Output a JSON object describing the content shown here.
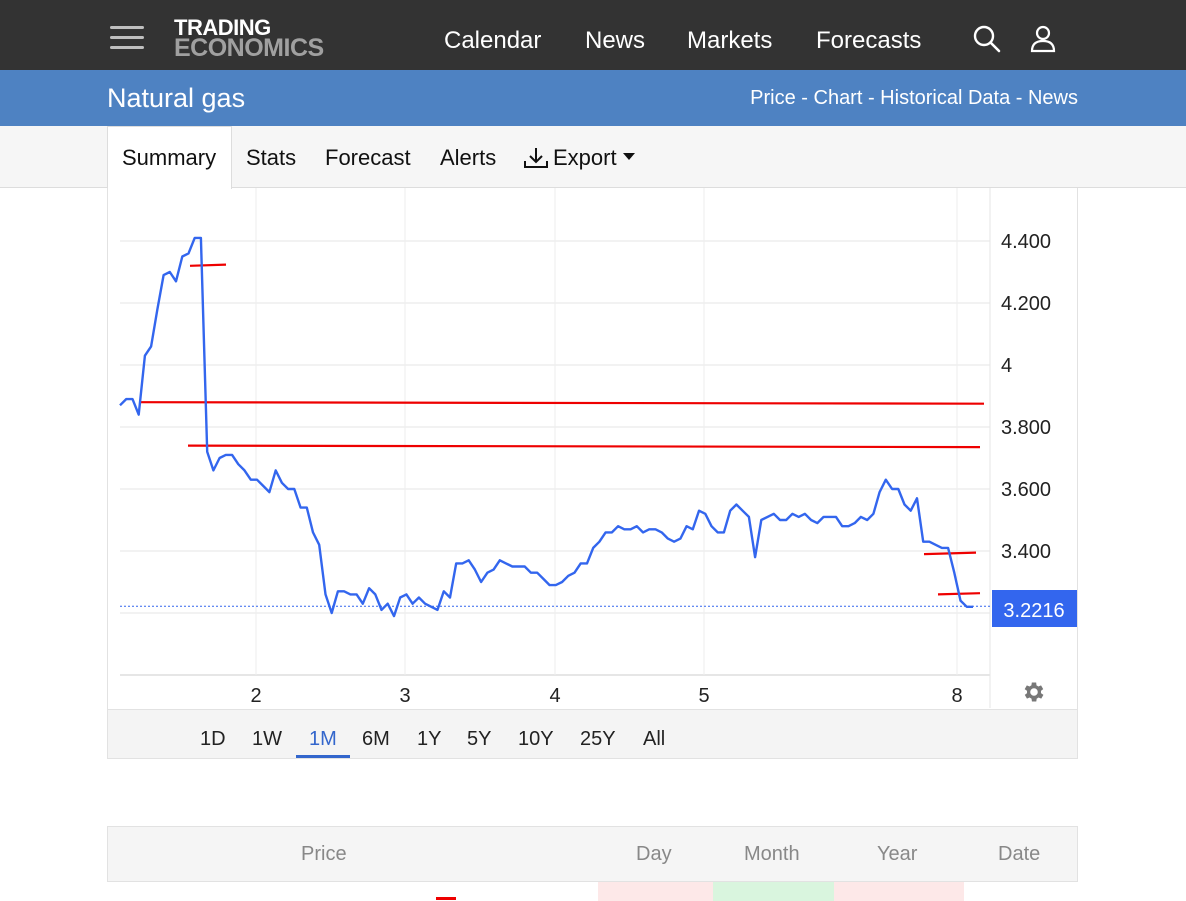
{
  "header": {
    "logo_line1": "TRADING",
    "logo_line2": "ECONOMICS",
    "nav": [
      "Calendar",
      "News",
      "Markets",
      "Forecasts"
    ],
    "search_icon": "search-icon",
    "user_icon": "user-icon",
    "menu_icon": "hamburger-menu-icon"
  },
  "subheader": {
    "title": "Natural gas",
    "links": "Price - Chart - Historical Data - News"
  },
  "tabs": {
    "summary": "Summary",
    "stats": "Stats",
    "forecast": "Forecast",
    "alerts": "Alerts",
    "export": "Export"
  },
  "chart_data": {
    "type": "line",
    "title": "",
    "xlabel": "",
    "ylabel": "",
    "x_ticks": [
      "2",
      "3",
      "4",
      "5",
      "8"
    ],
    "y_ticks": [
      "4.400",
      "4.200",
      "4",
      "3.800",
      "3.600",
      "3.400"
    ],
    "ylim": [
      3.0,
      4.55
    ],
    "current_value_label": "3.2216",
    "current_value": 3.2216,
    "series": [
      {
        "values": [
          3.87,
          3.89,
          3.89,
          3.84,
          4.03,
          4.06,
          4.18,
          4.29,
          4.3,
          4.27,
          4.35,
          4.36,
          4.41,
          4.41,
          3.72,
          3.66,
          3.7,
          3.71,
          3.71,
          3.68,
          3.66,
          3.63,
          3.63,
          3.61,
          3.59,
          3.66,
          3.62,
          3.6,
          3.6,
          3.54,
          3.54,
          3.46,
          3.42,
          3.26,
          3.2,
          3.27,
          3.27,
          3.26,
          3.26,
          3.23,
          3.28,
          3.26,
          3.21,
          3.23,
          3.19,
          3.25,
          3.26,
          3.23,
          3.25,
          3.23,
          3.22,
          3.21,
          3.27,
          3.25,
          3.36,
          3.36,
          3.37,
          3.34,
          3.3,
          3.33,
          3.34,
          3.37,
          3.36,
          3.35,
          3.35,
          3.35,
          3.33,
          3.33,
          3.31,
          3.29,
          3.29,
          3.3,
          3.32,
          3.33,
          3.36,
          3.36,
          3.41,
          3.43,
          3.46,
          3.46,
          3.48,
          3.47,
          3.47,
          3.48,
          3.46,
          3.47,
          3.47,
          3.46,
          3.44,
          3.43,
          3.44,
          3.48,
          3.47,
          3.53,
          3.52,
          3.48,
          3.46,
          3.46,
          3.53,
          3.55,
          3.53,
          3.51,
          3.38,
          3.5,
          3.51,
          3.52,
          3.5,
          3.5,
          3.52,
          3.51,
          3.52,
          3.5,
          3.49,
          3.51,
          3.51,
          3.51,
          3.48,
          3.48,
          3.49,
          3.51,
          3.5,
          3.52,
          3.59,
          3.63,
          3.6,
          3.6,
          3.55,
          3.53,
          3.57,
          3.43,
          3.43,
          3.42,
          3.41,
          3.41,
          3.33,
          3.24,
          3.22,
          3.22
        ]
      }
    ],
    "reference_lines": [
      3.88,
      3.74,
      4.32,
      3.39,
      3.26
    ],
    "grid": true
  },
  "ranges": [
    "1D",
    "1W",
    "1M",
    "6M",
    "1Y",
    "5Y",
    "10Y",
    "25Y",
    "All"
  ],
  "active_range": "1M",
  "settings_icon": "gear-icon",
  "table": {
    "headers": [
      "Price",
      "Day",
      "Month",
      "Year",
      "Date"
    ],
    "colors": {
      "day": "#fde8e8",
      "month": "#d9f5de",
      "year": "#fde8e8"
    }
  },
  "colors": {
    "topbar": "#333333",
    "subbar": "#4e82c2",
    "series": "#3366ee",
    "reference": "#ee0000",
    "current_label": "#3366ee"
  }
}
